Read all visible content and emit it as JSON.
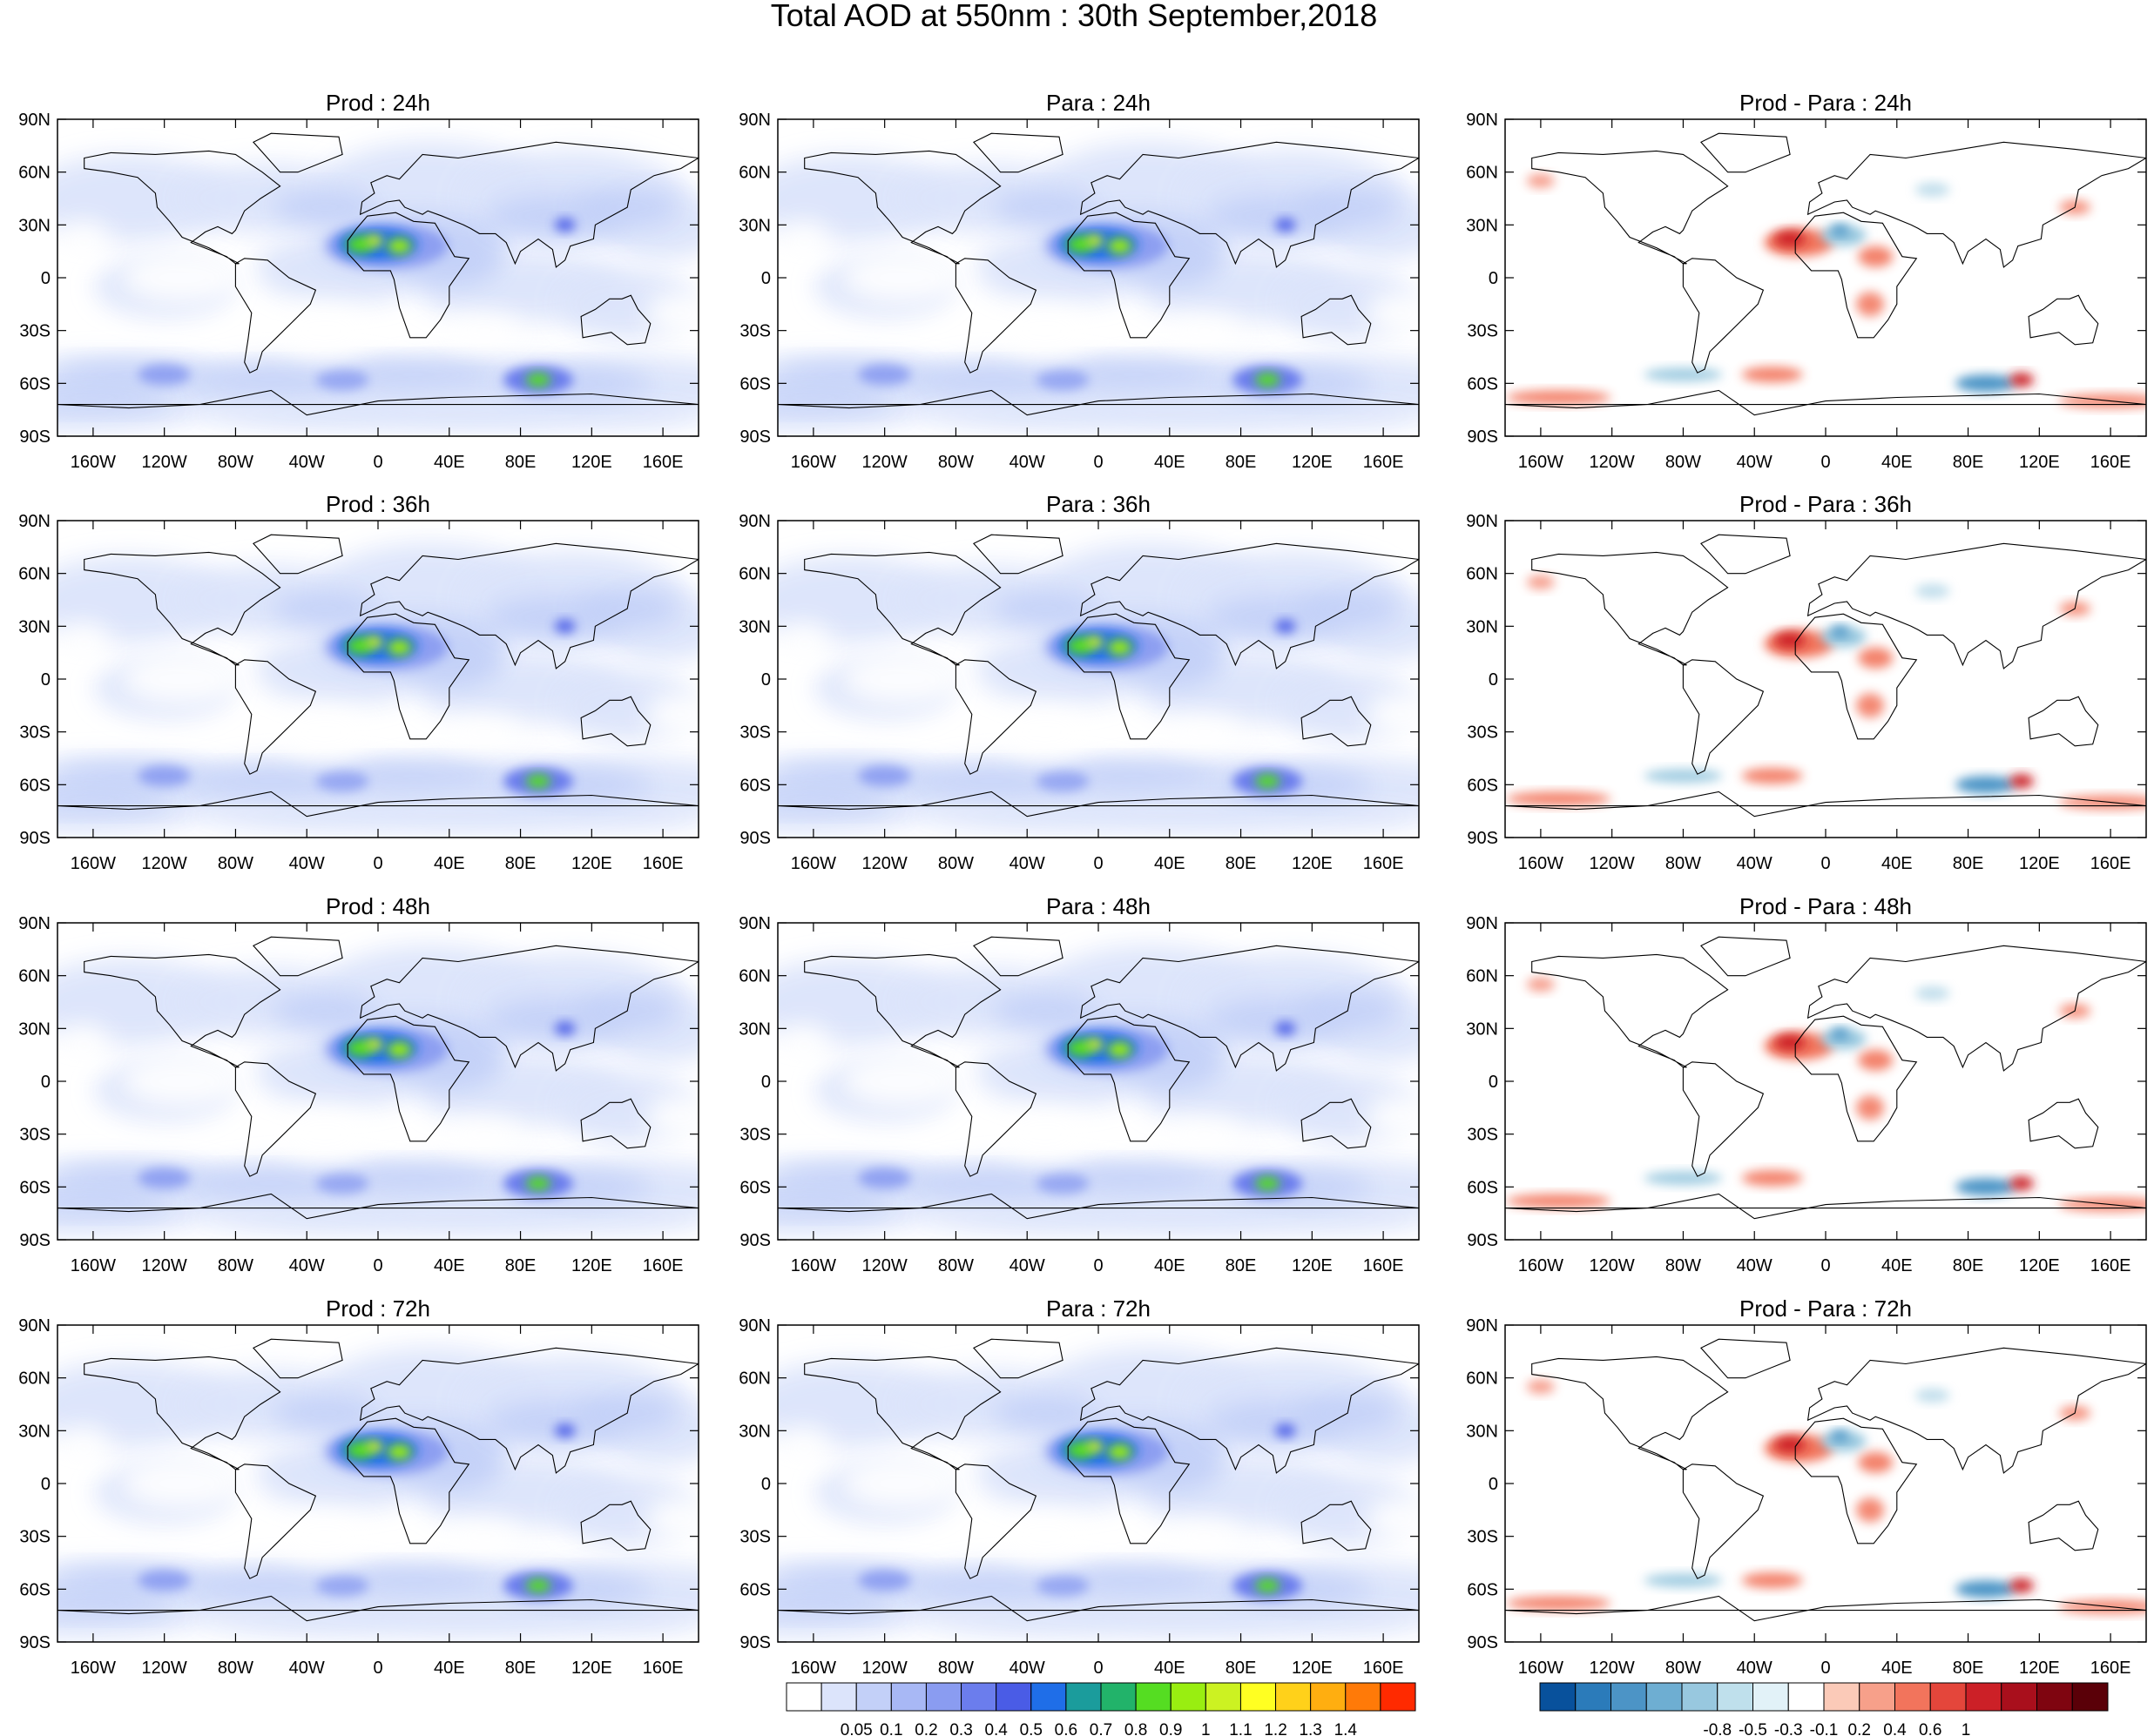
{
  "title": "Total AOD at 550nm : 30th September,2018",
  "columns": [
    "Prod",
    "Para",
    "Prod - Para"
  ],
  "lead_times": [
    "24h",
    "36h",
    "48h",
    "72h"
  ],
  "panels": [
    {
      "title": "Prod : 24h",
      "type": "aod"
    },
    {
      "title": "Para : 24h",
      "type": "aod"
    },
    {
      "title": "Prod - Para : 24h",
      "type": "diff"
    },
    {
      "title": "Prod : 36h",
      "type": "aod"
    },
    {
      "title": "Para : 36h",
      "type": "aod"
    },
    {
      "title": "Prod - Para : 36h",
      "type": "diff"
    },
    {
      "title": "Prod : 48h",
      "type": "aod"
    },
    {
      "title": "Para : 48h",
      "type": "aod"
    },
    {
      "title": "Prod - Para : 48h",
      "type": "diff"
    },
    {
      "title": "Prod : 72h",
      "type": "aod"
    },
    {
      "title": "Para : 72h",
      "type": "aod"
    },
    {
      "title": "Prod - Para : 72h",
      "type": "diff"
    }
  ],
  "lat_ticks": [
    "90N",
    "60N",
    "30N",
    "0",
    "30S",
    "60S",
    "90S"
  ],
  "lon_ticks": [
    "160W",
    "120W",
    "80W",
    "40W",
    "0",
    "40E",
    "80E",
    "120E",
    "160E"
  ],
  "aod_colorbar": {
    "labels": [
      "0.05",
      "0.1",
      "0.2",
      "0.3",
      "0.4",
      "0.5",
      "0.6",
      "0.7",
      "0.8",
      "0.9",
      "1",
      "1.1",
      "1.2",
      "1.3",
      "1.4"
    ],
    "colors": [
      "#ffffff",
      "#dce4fb",
      "#c3d0f8",
      "#a8b8f5",
      "#8a9cf1",
      "#6b7ded",
      "#4a5ce6",
      "#1f6ee8",
      "#1b9c9c",
      "#22b36a",
      "#55dd22",
      "#99ee11",
      "#ccf222",
      "#ffff22",
      "#ffd11a",
      "#ffae10",
      "#ff7a08",
      "#ff2a00"
    ]
  },
  "diff_colorbar": {
    "labels": [
      "-0.8",
      "-0.5",
      "-0.3",
      "-0.1",
      "0.2",
      "0.4",
      "0.6",
      "1"
    ],
    "colors": [
      "#08519c",
      "#2b7bba",
      "#4c94c6",
      "#6eaed2",
      "#98c8df",
      "#bfe0ec",
      "#e2f2f8",
      "#ffffff",
      "#fbcab8",
      "#f7a08a",
      "#f2745c",
      "#e4463b",
      "#cc2027",
      "#a90f1c",
      "#7f0510",
      "#5a0008"
    ]
  }
}
